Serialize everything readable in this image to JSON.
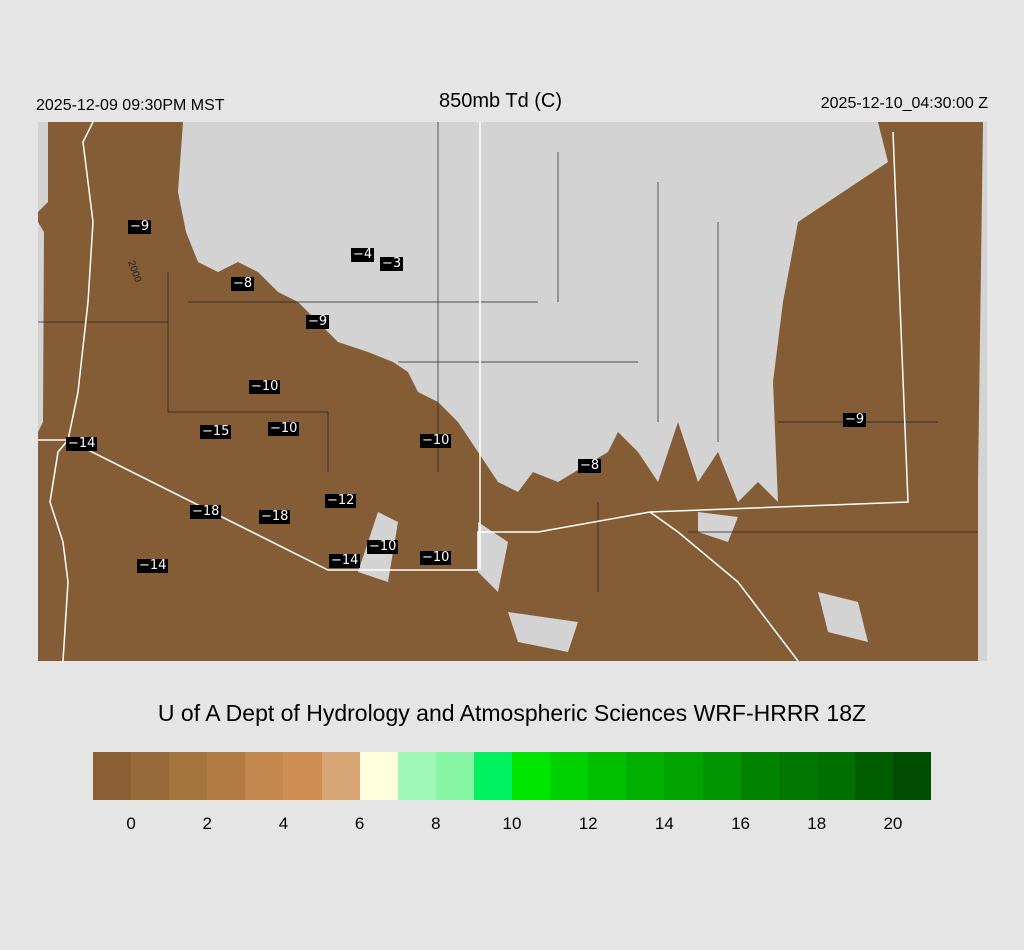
{
  "header": {
    "local_time": "2025-12-09 09:30PM MST",
    "title": "850mb Td (C)",
    "utc_time": "2025-12-10_04:30:00 Z"
  },
  "map": {
    "colors": {
      "dry": "#845C35",
      "no_data": "#d3d3d3",
      "borders": "#ffffff"
    },
    "contour_label": "2000",
    "stations": [
      "-9",
      "-4",
      "-3",
      "-8",
      "-9",
      "-10",
      "-15",
      "-10",
      "-10",
      "-14",
      "-8",
      "-9",
      "-12",
      "-18",
      "-18",
      "-10",
      "-10",
      "-14",
      "-14"
    ]
  },
  "footer": {
    "credit": "U of A Dept of Hydrology and Atmospheric Sciences WRF-HRRR 18Z"
  },
  "colorbar": {
    "colors": [
      "#8B5E34",
      "#98693A",
      "#A6743F",
      "#B27C45",
      "#C4894F",
      "#CF8F52",
      "#D8A577",
      "#FFFFDD",
      "#A0F8B8",
      "#88F5A5",
      "#00F060",
      "#00E600",
      "#00D200",
      "#00C000",
      "#00B000",
      "#00A300",
      "#009400",
      "#008400",
      "#007800",
      "#006E00",
      "#005E00",
      "#004C00"
    ],
    "ticks": [
      "0",
      "2",
      "4",
      "6",
      "8",
      "10",
      "12",
      "14",
      "16",
      "18",
      "20"
    ]
  }
}
